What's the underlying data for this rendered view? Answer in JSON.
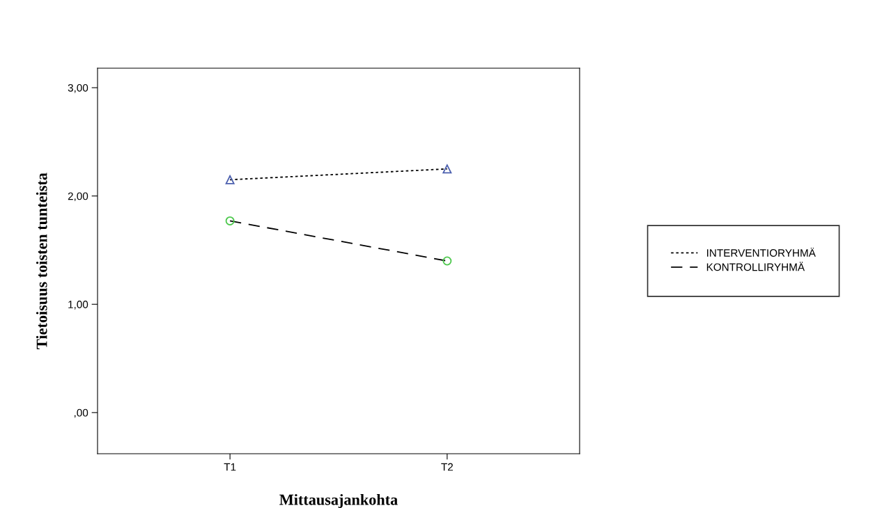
{
  "chart_data": {
    "type": "line",
    "xlabel": "Mittausajankohta",
    "ylabel": "Tietoisuus toisten tunteista",
    "categories": [
      "T1",
      "T2"
    ],
    "series": [
      {
        "name": "INTERVENTIORYHMÄ",
        "color": "#4b5fae",
        "values": [
          2.15,
          2.25
        ],
        "marker": "triangle",
        "line_style": "dotted"
      },
      {
        "name": "KONTROLLIRYHMÄ",
        "color": "#4cc84c",
        "values": [
          1.77,
          1.4
        ],
        "marker": "circle",
        "line_style": "dashed"
      }
    ],
    "ylim": [
      -0.38,
      3.18
    ],
    "yticks": [
      {
        "value": 0,
        "label": ",00"
      },
      {
        "value": 1,
        "label": "1,00"
      },
      {
        "value": 2,
        "label": "2,00"
      },
      {
        "value": 3,
        "label": "3,00"
      }
    ],
    "legend": "right",
    "grid": false
  }
}
